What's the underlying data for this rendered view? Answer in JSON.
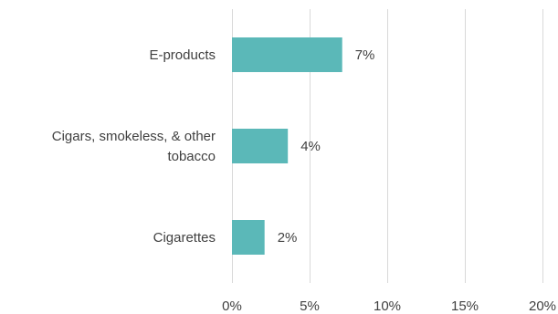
{
  "chart_data": {
    "type": "bar",
    "orientation": "horizontal",
    "categories": [
      "E-products",
      "Cigars, smokeless, & other tobacco",
      "Cigarettes"
    ],
    "category_lines": [
      [
        "E-products"
      ],
      [
        "Cigars, smokeless, & other",
        "tobacco"
      ],
      [
        "Cigarettes"
      ]
    ],
    "values": [
      7.1,
      3.6,
      2.1
    ],
    "data_labels": [
      "7%",
      "4%",
      "2%"
    ],
    "xlim": [
      0,
      20
    ],
    "x_ticks": [
      0,
      5,
      10,
      15,
      20
    ],
    "x_tick_labels": [
      "0%",
      "5%",
      "10%",
      "15%",
      "20%"
    ],
    "grid": true,
    "bar_color": "#5bb8b8"
  }
}
